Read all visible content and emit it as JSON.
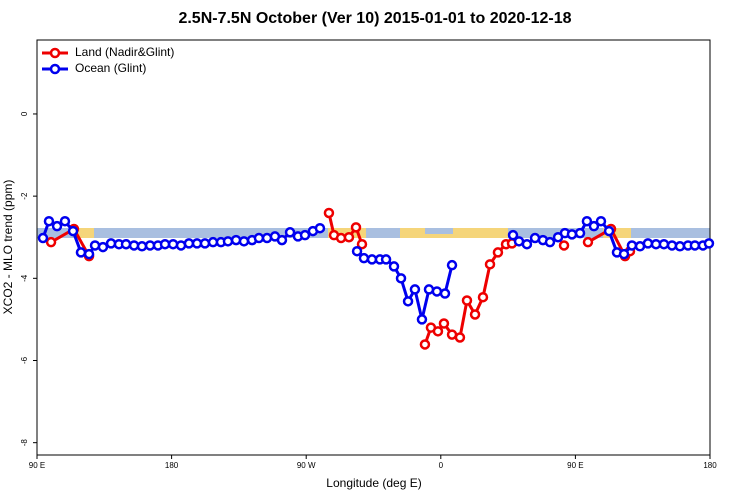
{
  "chart_data": {
    "type": "line",
    "title": "2.5N-7.5N October (Ver 10)   2015-01-01 to 2020-12-18",
    "xlabel": "Longitude (deg E)",
    "ylabel": "XCO2 - MLO trend (ppm)",
    "xlim": [
      90,
      540
    ],
    "ylim": [
      -8.3,
      1.8
    ],
    "xticks": [
      {
        "value": 90,
        "label": "90 E"
      },
      180,
      {
        "value": 270,
        "label": "90 W"
      },
      {
        "value": 360,
        "label": "0"
      },
      {
        "value": 450,
        "label": "90 E"
      },
      {
        "value": 540,
        "label": "180"
      }
    ],
    "yticks": [
      0,
      -2,
      -4,
      -6,
      -8
    ],
    "legend": "top-left",
    "series": [
      {
        "name": "Land (Nadir&Glint)",
        "color": "#ee0000",
        "x": [
          99.4,
          114.7,
          124.8,
          null,
          285.2,
          288.6,
          293.3,
          298.6,
          303.3,
          307.3,
          null,
          349.4,
          353.4,
          358.1,
          362.1,
          367.5,
          372.8,
          377.5,
          382.9,
          388.2,
          392.9,
          398.2,
          403.6,
          407.6,
          null,
          442.4,
          null,
          458.4,
          473.8,
          483.2,
          486.5
        ],
        "values": [
          -3.12,
          -2.8,
          -3.46,
          null,
          -2.41,
          -2.95,
          -3.02,
          -3.0,
          -2.76,
          -3.17,
          null,
          -5.61,
          -5.2,
          -5.29,
          -5.1,
          -5.37,
          -5.44,
          -4.54,
          -4.88,
          -4.46,
          -3.66,
          -3.37,
          -3.17,
          -3.15,
          null,
          -3.2,
          null,
          -3.12,
          -2.8,
          -3.46,
          -3.34
        ]
      },
      {
        "name": "Ocean (Glint)",
        "color": "#0000ee",
        "x": [
          94.0,
          98.0,
          103.4,
          108.7,
          114.1,
          119.4,
          124.8,
          128.8,
          134.1,
          139.5,
          144.8,
          149.5,
          154.9,
          160.2,
          165.6,
          170.9,
          175.6,
          181.0,
          186.3,
          191.6,
          197.0,
          202.3,
          207.7,
          213.0,
          217.7,
          223.1,
          228.4,
          233.8,
          238.4,
          243.8,
          249.1,
          253.8,
          259.2,
          264.5,
          269.2,
          274.5,
          279.2,
          null,
          304.0,
          308.6,
          314.0,
          319.3,
          323.4,
          328.7,
          333.4,
          338.1,
          342.7,
          347.4,
          352.1,
          357.4,
          362.8,
          367.5,
          null,
          408.3,
          412.3,
          417.6,
          423.0,
          428.3,
          433.0,
          438.4,
          443.0,
          447.7,
          453.1,
          457.7,
          462.4,
          467.1,
          472.5,
          477.8,
          482.5,
          487.8,
          493.2,
          498.5,
          503.9,
          509.2,
          514.6,
          519.9,
          525.3,
          529.9,
          535.3,
          539.3
        ],
        "values": [
          -3.02,
          -2.61,
          -2.73,
          -2.61,
          -2.85,
          -3.37,
          -3.41,
          -3.2,
          -3.24,
          -3.15,
          -3.17,
          -3.17,
          -3.2,
          -3.22,
          -3.2,
          -3.2,
          -3.17,
          -3.17,
          -3.2,
          -3.15,
          -3.15,
          -3.15,
          -3.12,
          -3.12,
          -3.1,
          -3.07,
          -3.1,
          -3.07,
          -3.02,
          -3.02,
          -2.98,
          -3.07,
          -2.88,
          -2.98,
          -2.95,
          -2.85,
          -2.78,
          null,
          -3.34,
          -3.51,
          -3.54,
          -3.54,
          -3.54,
          -3.71,
          -4.0,
          -4.56,
          -4.27,
          -5.0,
          -4.27,
          -4.32,
          -4.37,
          -3.68,
          null,
          -2.95,
          -3.1,
          -3.17,
          -3.02,
          -3.07,
          -3.12,
          -3.0,
          -2.9,
          -2.93,
          -2.9,
          -2.61,
          -2.73,
          -2.61,
          -2.85,
          -3.37,
          -3.41,
          -3.2,
          -3.22,
          -3.15,
          -3.17,
          -3.17,
          -3.2,
          -3.22,
          -3.2,
          -3.2,
          -3.2,
          -3.15
        ]
      }
    ]
  }
}
